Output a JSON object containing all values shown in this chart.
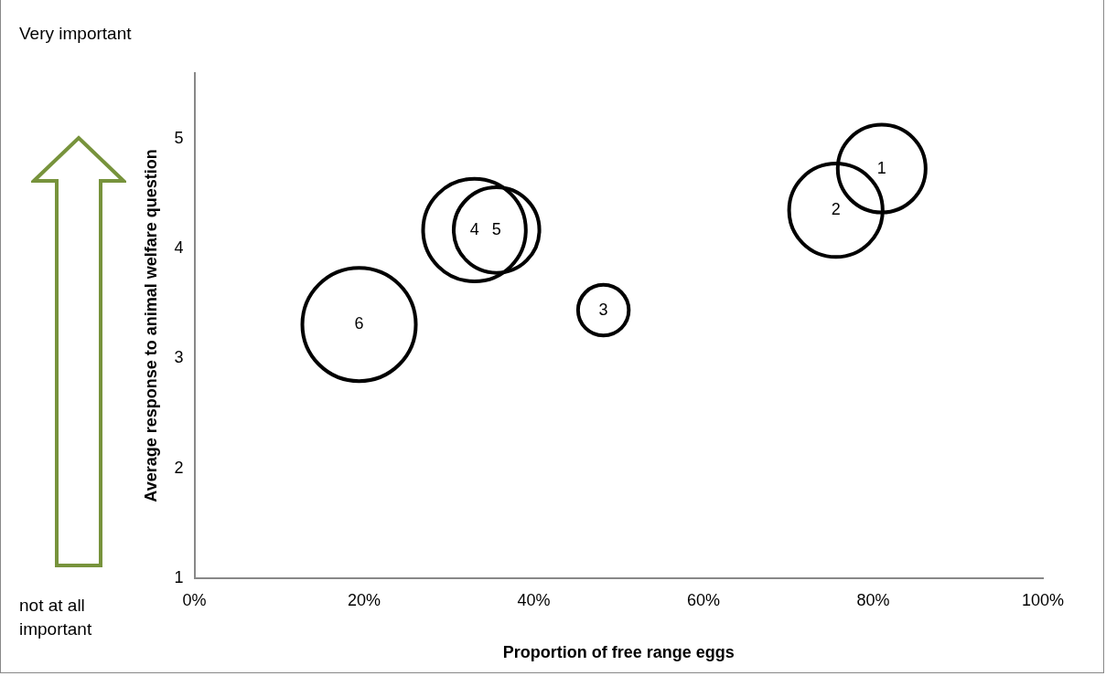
{
  "chart_data": {
    "type": "bubble",
    "xlabel": "Proportion of free range eggs",
    "ylabel": "Average response to animal welfare question",
    "x": [
      81.0,
      75.6,
      48.2,
      33.0,
      35.6,
      19.4
    ],
    "values": [
      4.73,
      4.35,
      3.44,
      4.17,
      4.17,
      3.31
    ],
    "sizes": [
      0.6,
      0.68,
      0.2,
      0.82,
      0.57,
      1
    ],
    "color": "#000000",
    "xlim": [
      0,
      100
    ],
    "xticks": [
      {
        "value": 0,
        "label": "0%"
      },
      {
        "value": 20,
        "label": "20%"
      },
      {
        "value": 40,
        "label": "40%"
      },
      {
        "value": 60,
        "label": "60%"
      },
      {
        "value": 80,
        "label": "80%"
      },
      {
        "value": 100,
        "label": "100%"
      }
    ],
    "ylim": [
      1,
      5.6
    ],
    "yticks": [
      1,
      2,
      3,
      4,
      5
    ],
    "grid": false,
    "legend": false,
    "annotations": [
      "Very important",
      "not at all important",
      {
        "text": "1",
        "x": 81.0,
        "y": 4.73
      },
      {
        "text": "2",
        "x": 75.6,
        "y": 4.35
      },
      {
        "text": "3",
        "x": 48.2,
        "y": 3.44
      },
      {
        "text": "4",
        "x": 33.0,
        "y": 4.17
      },
      {
        "text": "5",
        "x": 35.6,
        "y": 4.17
      },
      {
        "text": "6",
        "x": 19.4,
        "y": 3.31
      }
    ]
  }
}
